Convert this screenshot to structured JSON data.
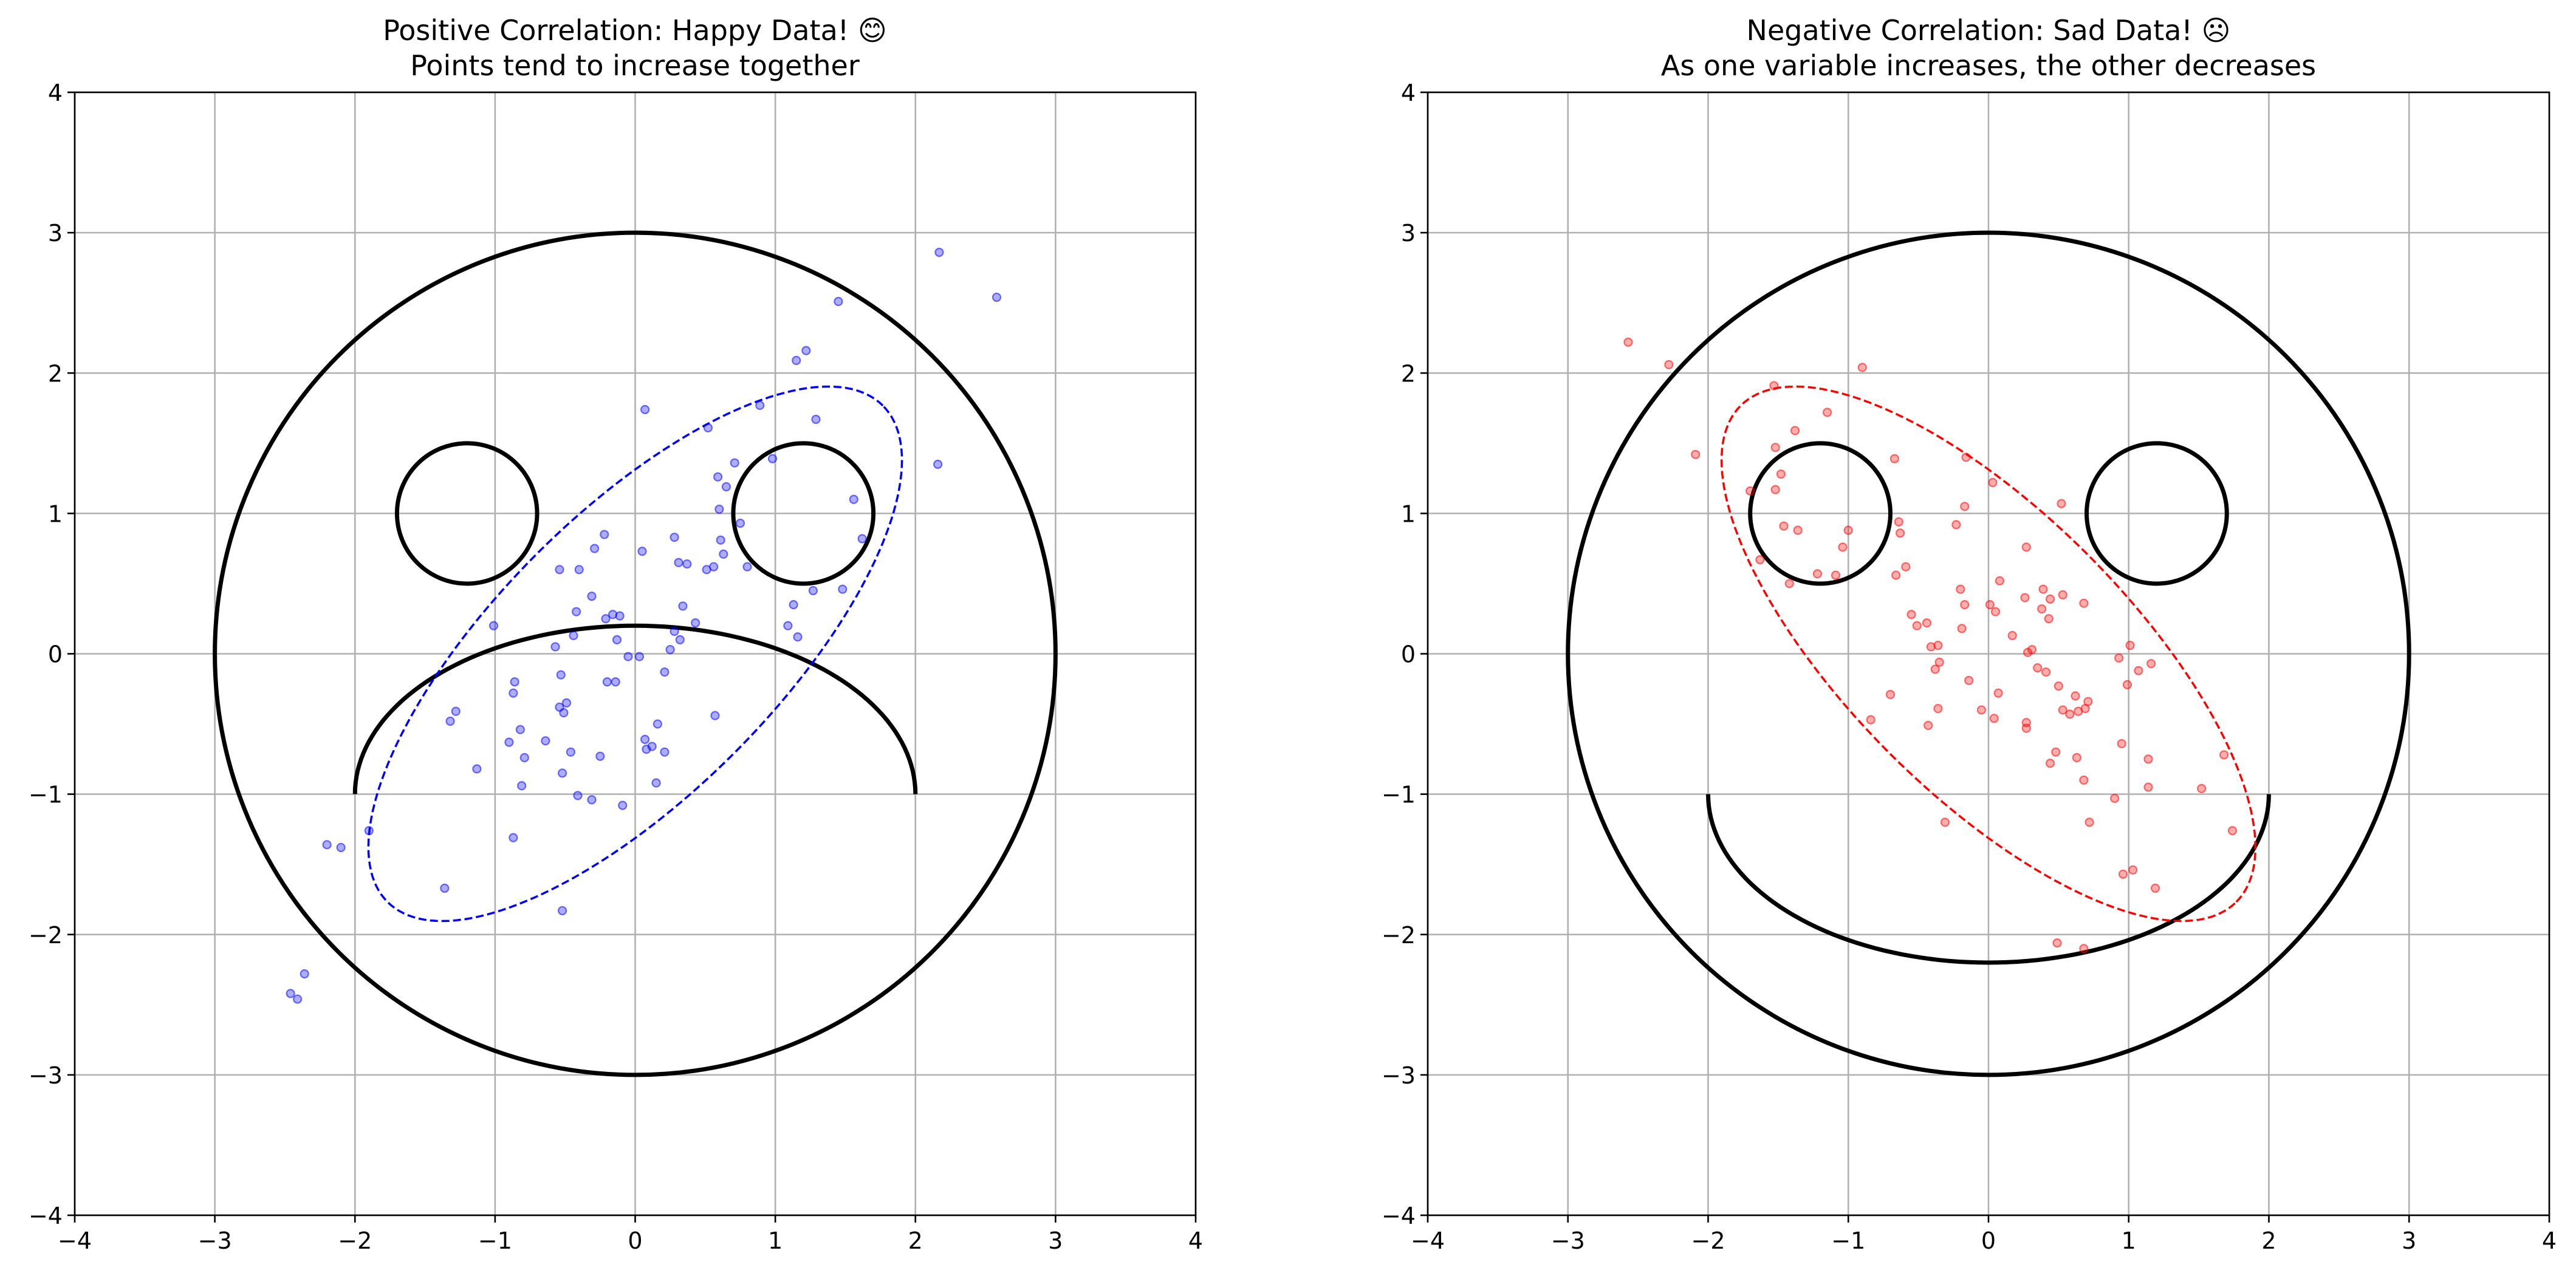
{
  "chart_data": [
    {
      "type": "scatter",
      "title": "Positive Correlation: Happy Data! 😊",
      "subtitle": "Points tend to increase together",
      "xlim": [
        -4,
        4
      ],
      "ylim": [
        -4,
        4
      ],
      "xticks": [
        -4,
        -3,
        -2,
        -1,
        0,
        1,
        2,
        3,
        4
      ],
      "yticks": [
        -4,
        -3,
        -2,
        -1,
        0,
        1,
        2,
        3,
        4
      ],
      "xtick_labels": [
        "−4",
        "−3",
        "−2",
        "−1",
        "0",
        "1",
        "2",
        "3",
        "4"
      ],
      "ytick_labels": [
        "−4",
        "−3",
        "−2",
        "−1",
        "0",
        "1",
        "2",
        "3",
        "4"
      ],
      "grid": true,
      "point_color": "#0000ff",
      "ellipse_color": "#0000ff",
      "face": {
        "head_radius": 3,
        "eyes": [
          [
            -1.2,
            1
          ],
          [
            1.2,
            1
          ]
        ],
        "eye_radius": 0.5,
        "mouth": "frown"
      },
      "ellipse": {
        "center": [
          0,
          0
        ],
        "width": 5,
        "height": 2,
        "angle_deg": 45
      },
      "points": [
        [
          2.17,
          2.86
        ],
        [
          2.58,
          2.54
        ],
        [
          1.45,
          2.51
        ],
        [
          1.22,
          2.16
        ],
        [
          1.15,
          2.09
        ],
        [
          0.89,
          1.77
        ],
        [
          0.07,
          1.74
        ],
        [
          1.29,
          1.67
        ],
        [
          0.52,
          1.61
        ],
        [
          0.98,
          1.39
        ],
        [
          0.71,
          1.36
        ],
        [
          0.59,
          1.26
        ],
        [
          2.16,
          1.35
        ],
        [
          0.65,
          1.19
        ],
        [
          1.56,
          1.1
        ],
        [
          0.6,
          1.03
        ],
        [
          0.75,
          0.93
        ],
        [
          1.62,
          0.82
        ],
        [
          0.28,
          0.83
        ],
        [
          -0.22,
          0.85
        ],
        [
          0.61,
          0.81
        ],
        [
          0.05,
          0.73
        ],
        [
          -0.29,
          0.75
        ],
        [
          -0.4,
          0.6
        ],
        [
          0.31,
          0.65
        ],
        [
          0.37,
          0.64
        ],
        [
          0.63,
          0.71
        ],
        [
          0.8,
          0.62
        ],
        [
          0.51,
          0.6
        ],
        [
          0.56,
          0.62
        ],
        [
          -0.54,
          0.6
        ],
        [
          1.27,
          0.45
        ],
        [
          1.48,
          0.46
        ],
        [
          -0.31,
          0.41
        ],
        [
          0.34,
          0.34
        ],
        [
          1.13,
          0.35
        ],
        [
          -0.16,
          0.28
        ],
        [
          -0.42,
          0.3
        ],
        [
          -0.21,
          0.25
        ],
        [
          -0.11,
          0.27
        ],
        [
          0.43,
          0.22
        ],
        [
          -1.01,
          0.2
        ],
        [
          1.09,
          0.2
        ],
        [
          1.16,
          0.12
        ],
        [
          -0.44,
          0.13
        ],
        [
          0.28,
          0.16
        ],
        [
          0.32,
          0.1
        ],
        [
          -0.13,
          0.1
        ],
        [
          -0.57,
          0.05
        ],
        [
          0.25,
          0.03
        ],
        [
          0.03,
          -0.02
        ],
        [
          -0.05,
          -0.02
        ],
        [
          0.21,
          -0.13
        ],
        [
          -0.53,
          -0.15
        ],
        [
          -0.86,
          -0.2
        ],
        [
          -0.2,
          -0.2
        ],
        [
          -0.14,
          -0.2
        ],
        [
          -0.87,
          -0.28
        ],
        [
          -0.54,
          -0.38
        ],
        [
          -0.49,
          -0.35
        ],
        [
          -0.51,
          -0.42
        ],
        [
          -1.28,
          -0.41
        ],
        [
          0.57,
          -0.44
        ],
        [
          -1.32,
          -0.48
        ],
        [
          0.16,
          -0.5
        ],
        [
          -0.82,
          -0.54
        ],
        [
          0.07,
          -0.61
        ],
        [
          0.21,
          -0.7
        ],
        [
          -0.25,
          -0.73
        ],
        [
          0.12,
          -0.66
        ],
        [
          -0.46,
          -0.7
        ],
        [
          0.08,
          -0.68
        ],
        [
          -0.64,
          -0.62
        ],
        [
          -0.9,
          -0.63
        ],
        [
          -0.79,
          -0.74
        ],
        [
          -0.52,
          -0.85
        ],
        [
          -1.13,
          -0.82
        ],
        [
          0.15,
          -0.92
        ],
        [
          -0.81,
          -0.94
        ],
        [
          -0.41,
          -1.01
        ],
        [
          -0.31,
          -1.04
        ],
        [
          -0.09,
          -1.08
        ],
        [
          -1.9,
          -1.26
        ],
        [
          -0.87,
          -1.31
        ],
        [
          -2.1,
          -1.38
        ],
        [
          -2.2,
          -1.36
        ],
        [
          -1.36,
          -1.67
        ],
        [
          -0.52,
          -1.83
        ],
        [
          -2.36,
          -2.28
        ],
        [
          -2.46,
          -2.42
        ],
        [
          -2.41,
          -2.46
        ]
      ]
    },
    {
      "type": "scatter",
      "title": "Negative Correlation: Sad Data! ☹",
      "subtitle": "As one variable increases, the other decreases",
      "xlim": [
        -4,
        4
      ],
      "ylim": [
        -4,
        4
      ],
      "xticks": [
        -4,
        -3,
        -2,
        -1,
        0,
        1,
        2,
        3,
        4
      ],
      "yticks": [
        -4,
        -3,
        -2,
        -1,
        0,
        1,
        2,
        3,
        4
      ],
      "xtick_labels": [
        "−4",
        "−3",
        "−2",
        "−1",
        "0",
        "1",
        "2",
        "3",
        "4"
      ],
      "ytick_labels": [
        "−4",
        "−3",
        "−2",
        "−1",
        "0",
        "1",
        "2",
        "3",
        "4"
      ],
      "grid": true,
      "point_color": "#ff0000",
      "ellipse_color": "#ff0000",
      "face": {
        "head_radius": 3,
        "eyes": [
          [
            -1.2,
            1
          ],
          [
            1.2,
            1
          ]
        ],
        "eye_radius": 0.5,
        "mouth": "smile"
      },
      "ellipse": {
        "center": [
          0,
          0
        ],
        "width": 5,
        "height": 2,
        "angle_deg": -45
      },
      "points": [
        [
          -2.57,
          2.22
        ],
        [
          -2.28,
          2.06
        ],
        [
          -0.9,
          2.04
        ],
        [
          -1.53,
          1.91
        ],
        [
          -1.15,
          1.72
        ],
        [
          -1.38,
          1.59
        ],
        [
          -2.09,
          1.42
        ],
        [
          -1.52,
          1.47
        ],
        [
          -1.48,
          1.28
        ],
        [
          -1.7,
          1.16
        ],
        [
          -1.52,
          1.17
        ],
        [
          -0.67,
          1.39
        ],
        [
          -0.16,
          1.4
        ],
        [
          0.03,
          1.22
        ],
        [
          -0.17,
          1.05
        ],
        [
          0.52,
          1.07
        ],
        [
          -0.23,
          0.92
        ],
        [
          -0.64,
          0.94
        ],
        [
          -0.63,
          0.86
        ],
        [
          -1.46,
          0.91
        ],
        [
          -1.36,
          0.88
        ],
        [
          -1.0,
          0.88
        ],
        [
          -1.04,
          0.76
        ],
        [
          -1.09,
          0.56
        ],
        [
          -1.63,
          0.67
        ],
        [
          -1.22,
          0.57
        ],
        [
          -1.42,
          0.5
        ],
        [
          0.05,
          0.3
        ],
        [
          0.08,
          0.52
        ],
        [
          0.27,
          0.76
        ],
        [
          0.39,
          0.46
        ],
        [
          0.44,
          0.39
        ],
        [
          0.53,
          0.42
        ],
        [
          -0.55,
          0.28
        ],
        [
          -0.17,
          0.35
        ],
        [
          -0.2,
          0.46
        ],
        [
          -0.66,
          0.56
        ],
        [
          -0.59,
          0.62
        ],
        [
          0.26,
          0.4
        ],
        [
          0.01,
          0.35
        ],
        [
          -0.44,
          0.22
        ],
        [
          -0.51,
          0.2
        ],
        [
          0.38,
          0.32
        ],
        [
          0.43,
          0.25
        ],
        [
          0.68,
          0.36
        ],
        [
          0.17,
          0.13
        ],
        [
          -0.19,
          0.18
        ],
        [
          -0.36,
          0.06
        ],
        [
          -0.41,
          0.05
        ],
        [
          0.28,
          0.01
        ],
        [
          0.31,
          0.03
        ],
        [
          -0.35,
          -0.06
        ],
        [
          -0.38,
          -0.11
        ],
        [
          0.35,
          -0.1
        ],
        [
          0.41,
          -0.13
        ],
        [
          1.07,
          -0.12
        ],
        [
          0.5,
          -0.23
        ],
        [
          -0.14,
          -0.19
        ],
        [
          1.16,
          -0.07
        ],
        [
          0.07,
          -0.28
        ],
        [
          0.99,
          -0.22
        ],
        [
          0.62,
          -0.3
        ],
        [
          0.71,
          -0.34
        ],
        [
          0.93,
          -0.03
        ],
        [
          1.01,
          0.06
        ],
        [
          0.53,
          -0.4
        ],
        [
          0.58,
          -0.43
        ],
        [
          0.64,
          -0.41
        ],
        [
          0.69,
          -0.39
        ],
        [
          -0.36,
          -0.39
        ],
        [
          -0.7,
          -0.29
        ],
        [
          -0.84,
          -0.47
        ],
        [
          -0.43,
          -0.51
        ],
        [
          -0.05,
          -0.4
        ],
        [
          0.04,
          -0.46
        ],
        [
          0.27,
          -0.49
        ],
        [
          0.27,
          -0.53
        ],
        [
          1.14,
          -0.75
        ],
        [
          0.63,
          -0.74
        ],
        [
          0.48,
          -0.7
        ],
        [
          0.44,
          -0.78
        ],
        [
          0.95,
          -0.64
        ],
        [
          1.68,
          -0.72
        ],
        [
          1.52,
          -0.96
        ],
        [
          1.14,
          -0.95
        ],
        [
          0.68,
          -0.9
        ],
        [
          -0.31,
          -1.2
        ],
        [
          0.9,
          -1.03
        ],
        [
          0.72,
          -1.2
        ],
        [
          1.74,
          -1.26
        ],
        [
          1.03,
          -1.54
        ],
        [
          0.96,
          -1.57
        ],
        [
          1.19,
          -1.67
        ],
        [
          0.49,
          -2.06
        ],
        [
          0.68,
          -2.1
        ]
      ]
    }
  ]
}
